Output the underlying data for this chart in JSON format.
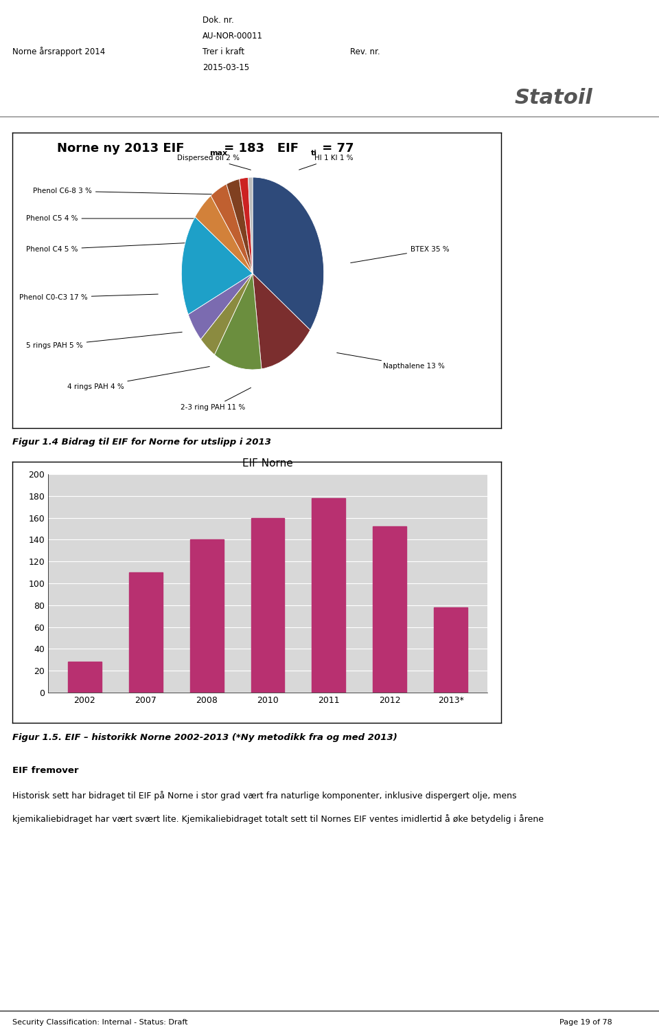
{
  "header_left": "Norne årsrapport 2014",
  "header_center_line1": "Dok. nr.",
  "header_center_line2": "AU-NOR-00011",
  "header_center_line3": "Trer i kraft",
  "header_center_line4": "2015-03-15",
  "header_right": "Rev. nr.",
  "pie_slices": [
    {
      "label": "BTEX 35 %",
      "value": 35,
      "color": "#2E4A7A"
    },
    {
      "label": "Napthalene 13 %",
      "value": 13,
      "color": "#7B2E2E"
    },
    {
      "label": "2-3 ring PAH 11 %",
      "value": 11,
      "color": "#6B8E3E"
    },
    {
      "label": "4 rings PAH 4 %",
      "value": 4,
      "color": "#8B8B40"
    },
    {
      "label": "5 rings PAH 5 %",
      "value": 5,
      "color": "#7B6BB0"
    },
    {
      "label": "Phenol C0-C3 17 %",
      "value": 17,
      "color": "#1EA0C8"
    },
    {
      "label": "Phenol C4 5 %",
      "value": 5,
      "color": "#D2813A"
    },
    {
      "label": "Phenol C5 4 %",
      "value": 4,
      "color": "#C06030"
    },
    {
      "label": "Phenol C6-8 3 %",
      "value": 3,
      "color": "#804020"
    },
    {
      "label": "Dispersed oil 2 %",
      "value": 2,
      "color": "#CC2222"
    },
    {
      "label": "HI 1 KI 1 %",
      "value": 1,
      "color": "#BBBBBB"
    }
  ],
  "bar_title": "EIF Norne",
  "bar_years": [
    "2002",
    "2007",
    "2008",
    "2010",
    "2011",
    "2012",
    "2013*"
  ],
  "bar_values": [
    28,
    110,
    140,
    160,
    178,
    152,
    78
  ],
  "bar_color": "#B83070",
  "bar_bg": "#D8D8D8",
  "bar_ylim": [
    0,
    200
  ],
  "bar_yticks": [
    0,
    20,
    40,
    60,
    80,
    100,
    120,
    140,
    160,
    180,
    200
  ],
  "fig1_caption": "Figur 1.4 Bidrag til EIF for Norne for utslipp i 2013",
  "fig2_caption": "Figur 1.5. EIF – historikk Norne 2002-2013 (*Ny metodikk fra og med 2013)",
  "section_title": "EIF fremover",
  "section_text1": "Historisk sett har bidraget til EIF på Norne i stor grad vært fra naturlige komponenter, inklusive dispergert olje, mens",
  "section_text2": "kjemikaliebidraget har vært svært lite. Kjemikaliebidraget totalt sett til Nornes EIF ventes imidlertid å øke betydelig i årene",
  "footer_left": "Security Classification: Internal - Status: Draft",
  "footer_right": "Page 19 of 78",
  "statoil_text": "Statoil"
}
